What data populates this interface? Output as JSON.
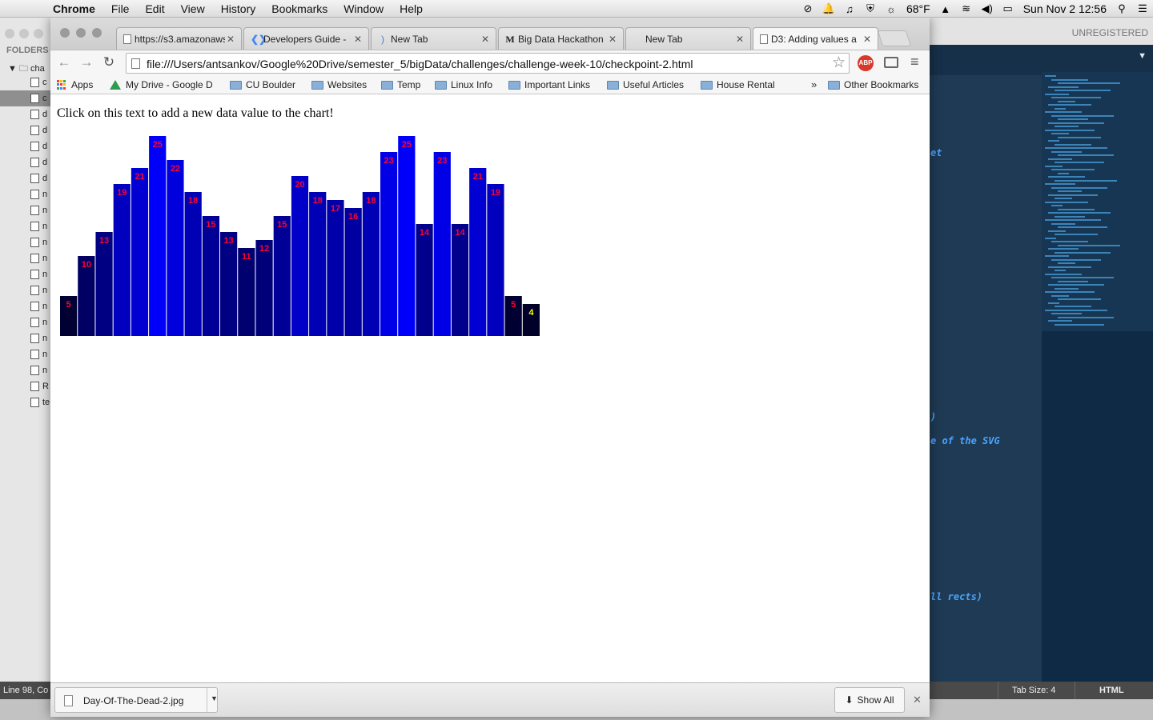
{
  "menubar": {
    "app": "Chrome",
    "items": [
      "File",
      "Edit",
      "View",
      "History",
      "Bookmarks",
      "Window",
      "Help"
    ],
    "weather": "68°F",
    "datetime": "Sun Nov 2  12:56"
  },
  "sublime": {
    "unregistered": "UNREGISTERED",
    "folders_label": "FOLDERS",
    "root_folder": "cha",
    "tree_items": [
      "c",
      "c",
      "d",
      "d",
      "d",
      "d",
      "d",
      "n",
      "n",
      "n",
      "n",
      "n",
      "n",
      "n",
      "n",
      "n",
      "n",
      "n",
      "n",
      "R",
      "te"
    ],
    "status_left": "Line 98, Co",
    "tab_size": "Tab Size: 4",
    "syntax": "HTML",
    "code_fragments": [
      "et",
      ")",
      "e of the SVG",
      "ll rects)"
    ]
  },
  "tabs": [
    {
      "title": "https://s3.amazonaws",
      "icon": "page"
    },
    {
      "title": "Developers Guide -",
      "icon": "google"
    },
    {
      "title": "New Tab",
      "icon": "loading"
    },
    {
      "title": "Big Data Hackathon",
      "icon": "medium"
    },
    {
      "title": "New Tab",
      "icon": "none"
    },
    {
      "title": "D3: Adding values a",
      "icon": "page"
    }
  ],
  "address": {
    "url": "file:///Users/antsankov/Google%20Drive/semester_5/bigData/challenges/challenge-week-10/checkpoint-2.html"
  },
  "extensions": {
    "abp": "ABP"
  },
  "bookmarks": {
    "items": [
      "Apps",
      "My Drive - Google D",
      "CU Boulder",
      "Websites",
      "Temp",
      "Linux Info",
      "Important Links",
      "Useful Articles",
      "House Rental"
    ],
    "more": "»",
    "other": "Other Bookmarks"
  },
  "page": {
    "instruction": "Click on this text to add a new data value to the chart!"
  },
  "chart_data": {
    "type": "bar",
    "values": [
      5,
      10,
      13,
      19,
      21,
      25,
      22,
      18,
      15,
      13,
      11,
      12,
      15,
      20,
      18,
      17,
      16,
      18,
      23,
      25,
      14,
      23,
      14,
      21,
      19,
      5,
      4
    ],
    "label_color": "#ff0033",
    "last_label_color": "#ffff00",
    "fill_rule": "rgb(0,0,value*10)",
    "xlabel": "",
    "ylabel": ""
  },
  "downloads": {
    "file": "Day-Of-The-Dead-2.jpg",
    "show_all": "Show All"
  },
  "colors": {
    "sublime_bg": "#1f3a54",
    "code_accent": "#4aa3ff",
    "abp_red": "#d8392a"
  }
}
